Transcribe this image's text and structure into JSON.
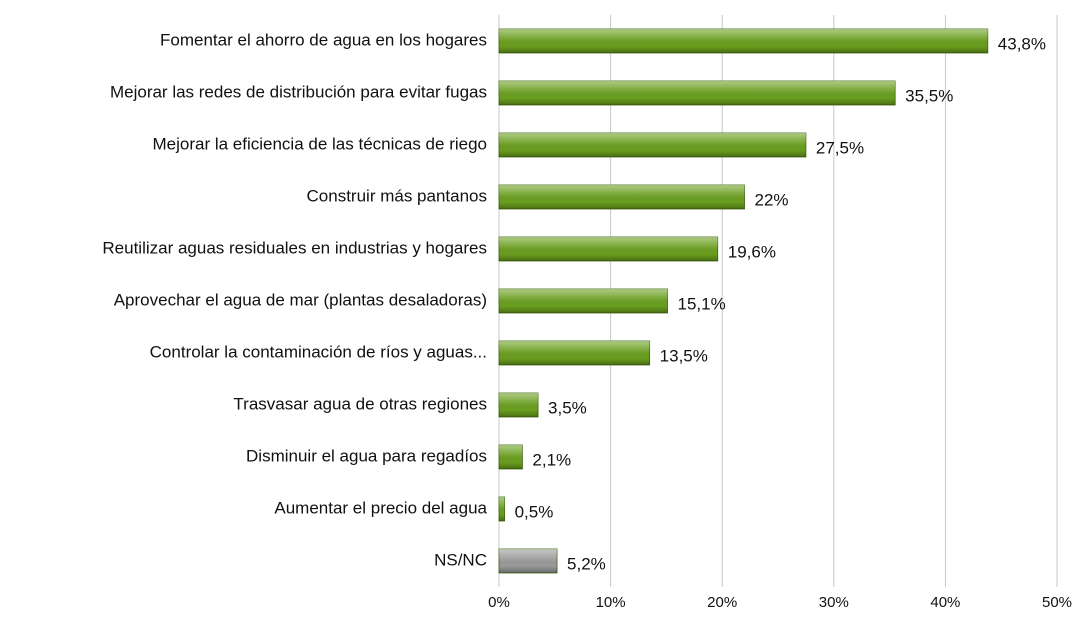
{
  "chart_data": {
    "type": "hbar",
    "categories": [
      "Fomentar el ahorro de agua en los hogares",
      "Mejorar las redes de distribución para evitar fugas",
      "Mejorar la eficiencia de las técnicas de riego",
      "Construir más pantanos",
      "Reutilizar aguas residuales en  industrias y hogares",
      "Aprovechar el agua de mar (plantas desaladoras)",
      "Controlar la contaminación de ríos y aguas...",
      "Trasvasar agua de otras regiones",
      "Disminuir el agua para regadíos",
      "Aumentar el precio del agua",
      "NS/NC"
    ],
    "values": [
      43.8,
      35.5,
      27.5,
      22,
      19.6,
      15.1,
      13.5,
      3.5,
      2.1,
      0.5,
      5.2
    ],
    "value_labels": [
      "43,8%",
      "35,5%",
      "27,5%",
      "22%",
      "19,6%",
      "15,1%",
      "13,5%",
      "3,5%",
      "2,1%",
      "0,5%",
      "5,2%"
    ],
    "colors": [
      "#6a9f1e",
      "#6a9f1e",
      "#6a9f1e",
      "#6a9f1e",
      "#6a9f1e",
      "#6a9f1e",
      "#6a9f1e",
      "#6a9f1e",
      "#6a9f1e",
      "#6a9f1e",
      "#9a9a9a"
    ],
    "xlim": [
      0,
      50
    ],
    "xticks": [
      {
        "value": 0,
        "label": "0%"
      },
      {
        "value": 10,
        "label": "10%"
      },
      {
        "value": 20,
        "label": "20%"
      },
      {
        "value": 30,
        "label": "30%"
      },
      {
        "value": 40,
        "label": "40%"
      },
      {
        "value": 50,
        "label": "50%"
      }
    ],
    "grid": true
  }
}
